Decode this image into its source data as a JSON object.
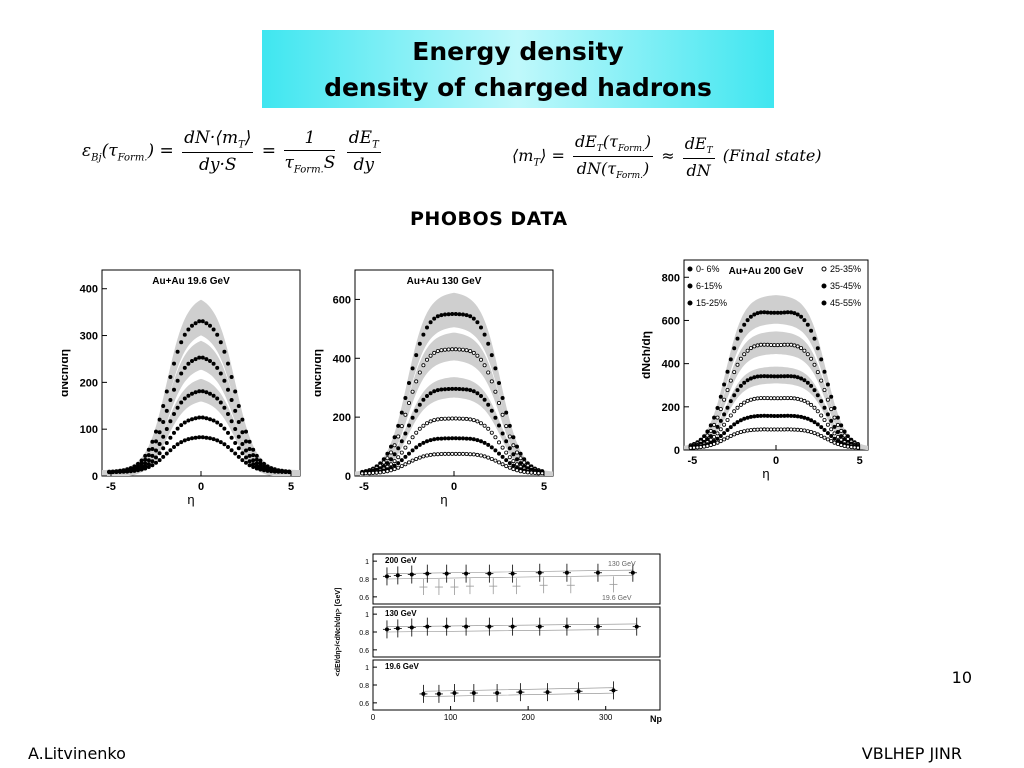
{
  "title": {
    "line1": "Energy density",
    "line2": "density of charged hadrons"
  },
  "formula_left": {
    "eps": "ε",
    "sub_bj": "Bj",
    "tau": "τ",
    "sub_form": "Form.",
    "num1": "dN·⟨m",
    "sub_T": "T",
    "num1_end": "⟩",
    "den1": "dy·S",
    "num2": "1",
    "den2_tau": "τ",
    "den2_S": "S",
    "num3": "dE",
    "den3": "dy"
  },
  "formula_right": {
    "mt": "⟨m",
    "sub_T": "T",
    "mt_end": "⟩",
    "eq": "=",
    "num1": "dE",
    "num1_arg": "(τ",
    "den1": "dN(τ",
    "close": ")",
    "approx": "≈",
    "num2": "dE",
    "den2": "dN",
    "final": "(Final state)"
  },
  "phobos_label": "PHOBOS DATA",
  "slide_number": "10",
  "footer_left": "A.Litvinenko",
  "footer_right": "VBLHEP JINR",
  "chart_data": [
    {
      "type": "scatter",
      "title": "Au+Au  19.6 GeV",
      "xlabel": "η",
      "ylabel": "dNch/dη",
      "xlim": [
        -5.5,
        5.5
      ],
      "ylim": [
        0,
        440
      ],
      "xticks": [
        -5,
        0,
        5
      ],
      "yticks": [
        0,
        100,
        200,
        300,
        400
      ],
      "series": [
        {
          "plateau": 345,
          "width": 1.9
        },
        {
          "plateau": 262,
          "width": 1.9
        },
        {
          "plateau": 185,
          "width": 1.9
        },
        {
          "plateau": 125,
          "width": 1.9
        },
        {
          "plateau": 80,
          "width": 1.9
        }
      ]
    },
    {
      "type": "scatter",
      "title": "Au+Au 130 GeV",
      "xlabel": "η",
      "ylabel": "dNch/dη",
      "xlim": [
        -5.5,
        5.5
      ],
      "ylim": [
        0,
        700
      ],
      "xticks": [
        -5,
        0,
        5
      ],
      "yticks": [
        0,
        200,
        400,
        600
      ],
      "series": [
        {
          "plateau": 565,
          "width": 2.6
        },
        {
          "plateau": 440,
          "width": 2.6
        },
        {
          "plateau": 300,
          "width": 2.6
        },
        {
          "plateau": 195,
          "width": 2.6
        },
        {
          "plateau": 125,
          "width": 2.6
        },
        {
          "plateau": 70,
          "width": 2.6
        }
      ]
    },
    {
      "type": "scatter",
      "title": "Au+Au 200 GeV",
      "xlabel": "η",
      "ylabel": "dNch/dη",
      "xlim": [
        -5.5,
        5.5
      ],
      "ylim": [
        0,
        880
      ],
      "xticks": [
        -5,
        0,
        5
      ],
      "yticks": [
        0,
        200,
        400,
        600,
        800
      ],
      "legend": [
        "0- 6%",
        "6-15%",
        "15-25%",
        "25-35%",
        "35-45%",
        "45-55%"
      ],
      "series": [
        {
          "plateau": 650,
          "width": 3.0
        },
        {
          "plateau": 495,
          "width": 3.0
        },
        {
          "plateau": 345,
          "width": 3.0
        },
        {
          "plateau": 240,
          "width": 3.0
        },
        {
          "plateau": 155,
          "width": 3.0
        },
        {
          "plateau": 90,
          "width": 3.0
        }
      ]
    },
    {
      "type": "scatter",
      "xlabel": "Np",
      "ylabel": "<dEt/dη>/<dNch/dη> [GeV]",
      "xlim": [
        0,
        370
      ],
      "xticks": [
        0,
        100,
        200,
        300
      ],
      "panels": [
        {
          "label": "200 GeV",
          "yticks": [
            0.6,
            0.8,
            1
          ],
          "band_labels": [
            "130 GeV",
            "19.6 GeV"
          ],
          "points": [
            [
              18,
              0.83
            ],
            [
              32,
              0.84
            ],
            [
              50,
              0.85
            ],
            [
              70,
              0.86
            ],
            [
              95,
              0.86
            ],
            [
              120,
              0.86
            ],
            [
              150,
              0.86
            ],
            [
              180,
              0.86
            ],
            [
              215,
              0.87
            ],
            [
              250,
              0.87
            ],
            [
              290,
              0.87
            ],
            [
              335,
              0.87
            ]
          ],
          "ref_points": [
            [
              65,
              0.71
            ],
            [
              85,
              0.71
            ],
            [
              105,
              0.71
            ],
            [
              125,
              0.72
            ],
            [
              155,
              0.72
            ],
            [
              185,
              0.72
            ],
            [
              220,
              0.73
            ],
            [
              255,
              0.73
            ],
            [
              310,
              0.74
            ]
          ]
        },
        {
          "label": "130 GeV",
          "yticks": [
            0.6,
            0.8,
            1
          ],
          "points": [
            [
              18,
              0.83
            ],
            [
              32,
              0.84
            ],
            [
              50,
              0.85
            ],
            [
              70,
              0.86
            ],
            [
              95,
              0.86
            ],
            [
              120,
              0.86
            ],
            [
              150,
              0.86
            ],
            [
              180,
              0.86
            ],
            [
              215,
              0.86
            ],
            [
              250,
              0.86
            ],
            [
              290,
              0.86
            ],
            [
              340,
              0.86
            ]
          ]
        },
        {
          "label": "19.6 GeV",
          "yticks": [
            0.6,
            0.8,
            1
          ],
          "points": [
            [
              65,
              0.7
            ],
            [
              85,
              0.7
            ],
            [
              105,
              0.71
            ],
            [
              130,
              0.71
            ],
            [
              160,
              0.71
            ],
            [
              190,
              0.72
            ],
            [
              225,
              0.72
            ],
            [
              265,
              0.73
            ],
            [
              310,
              0.74
            ]
          ]
        }
      ]
    }
  ]
}
